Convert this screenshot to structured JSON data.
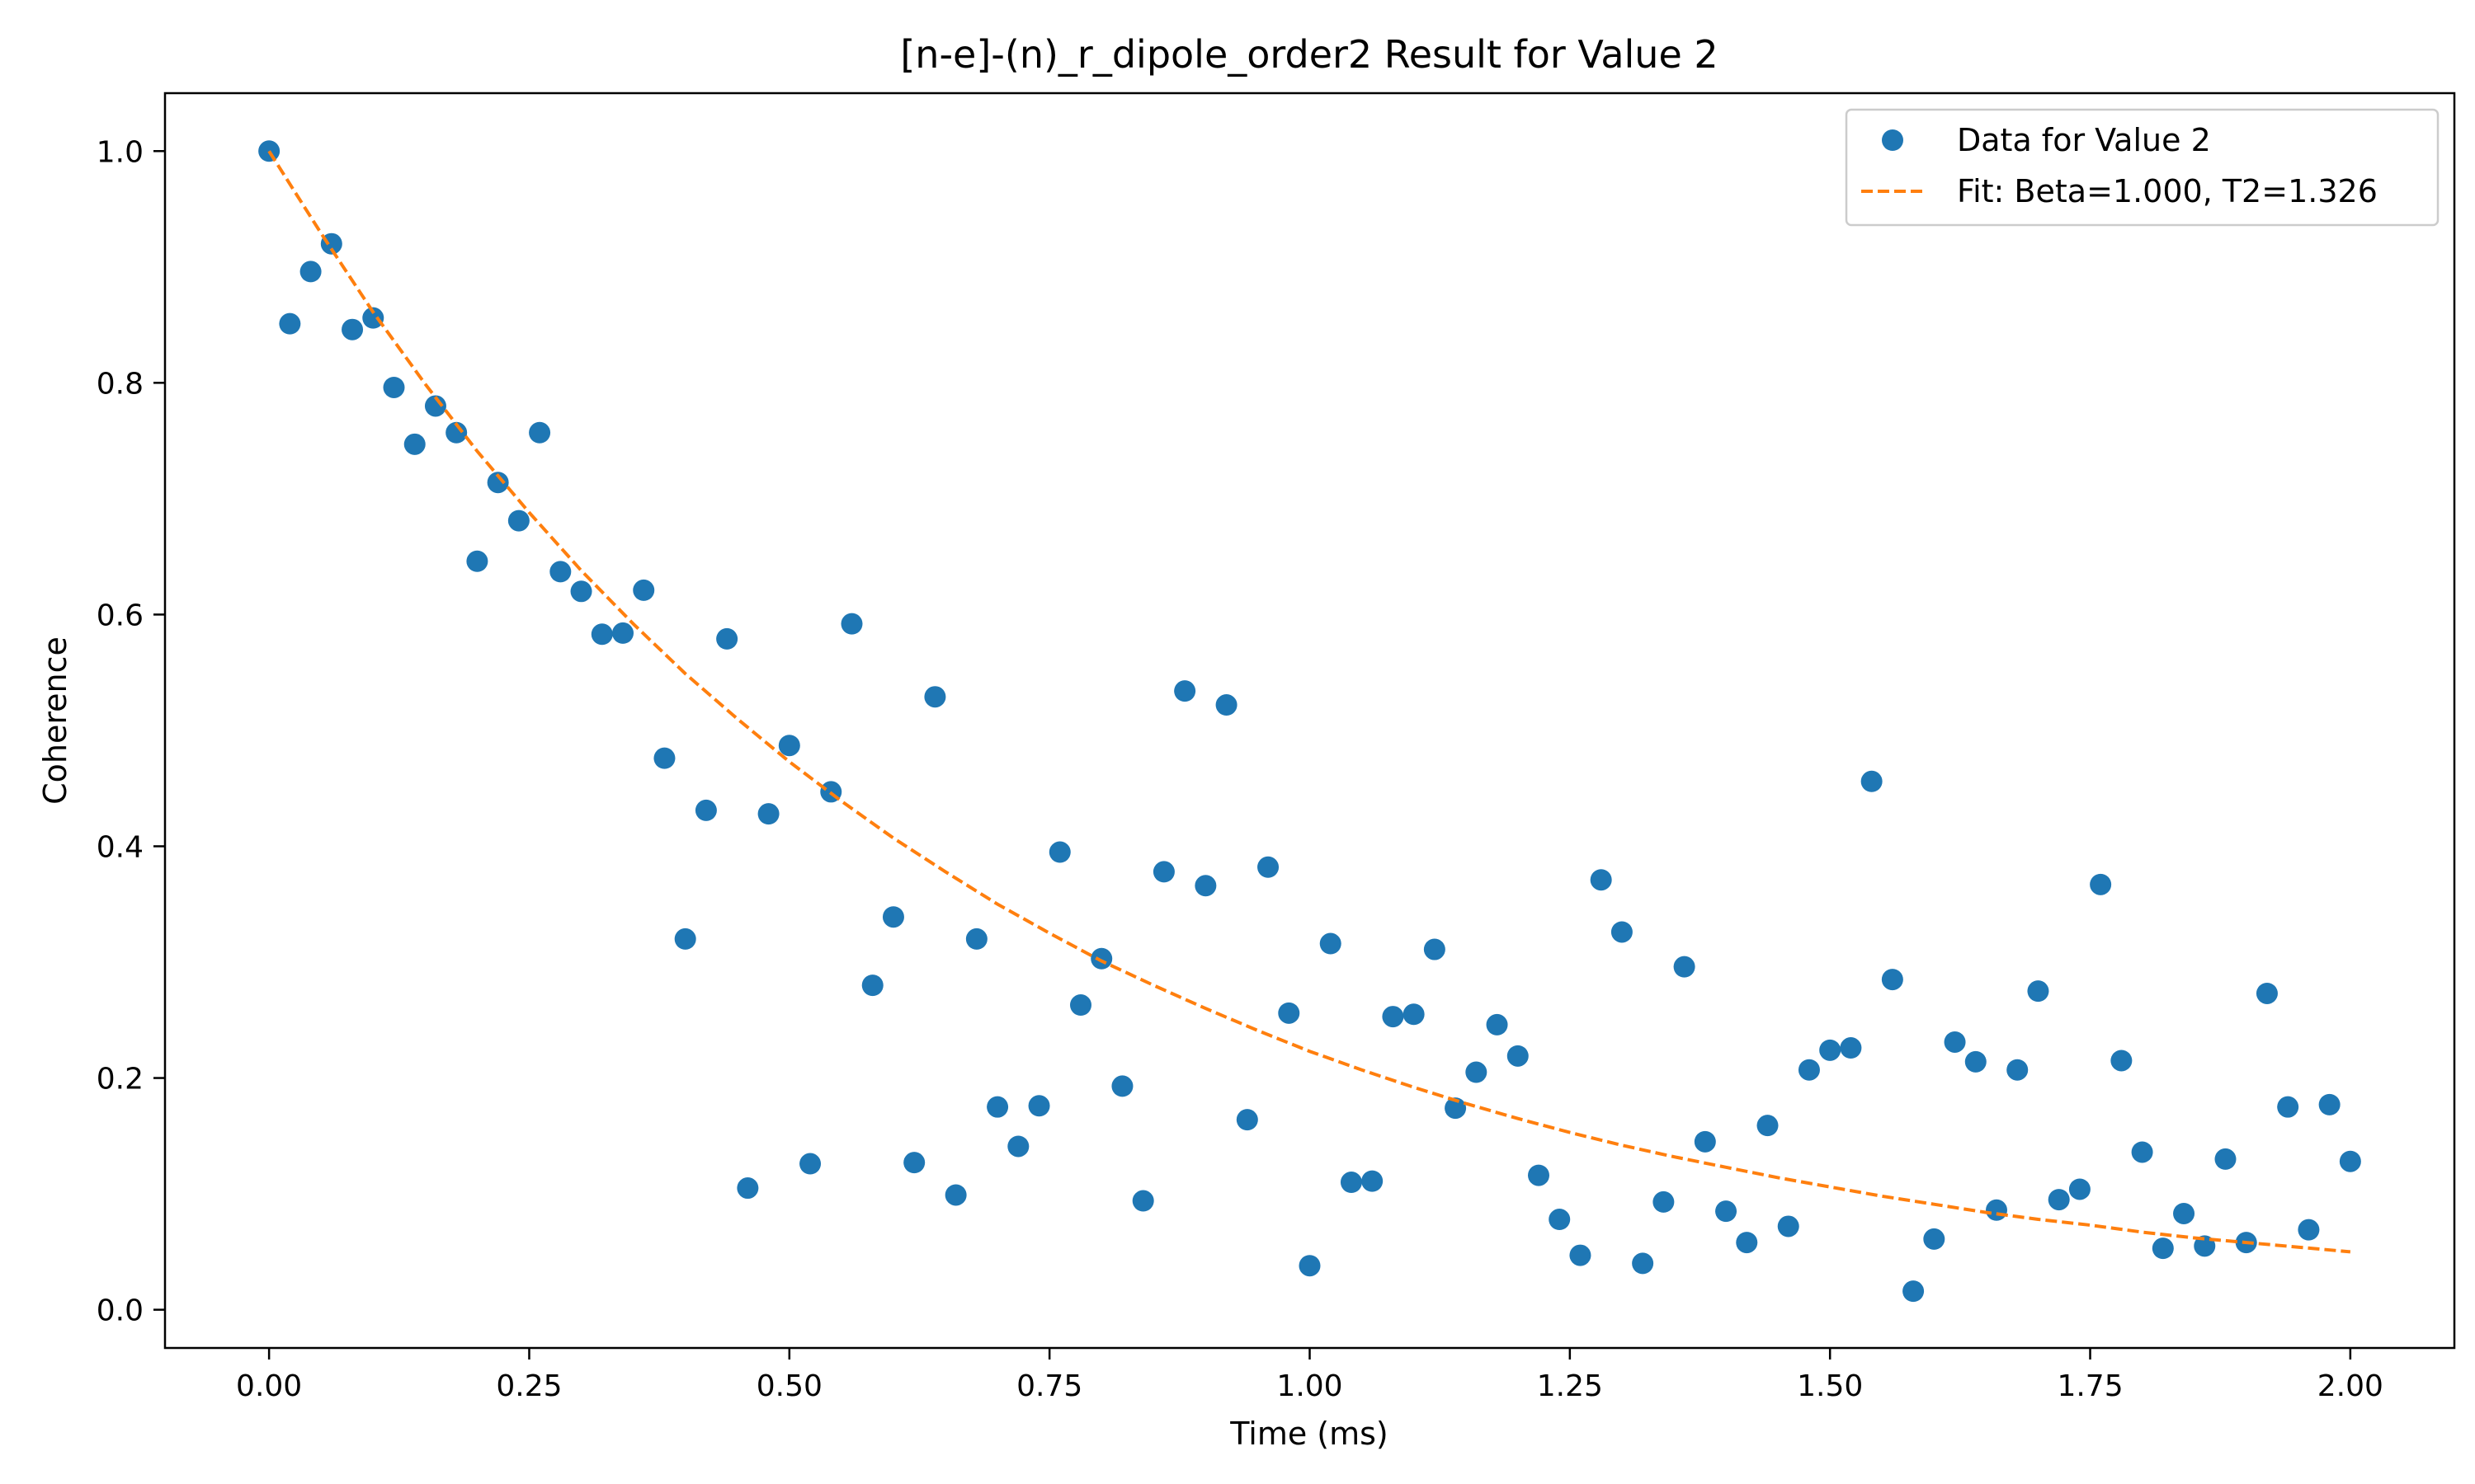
{
  "chart_data": {
    "type": "scatter",
    "title": "[n-e]-(n)_r_dipole_order2 Result for Value 2",
    "xlabel": "Time (ms)",
    "ylabel": "Coherence",
    "xlim": [
      -0.1,
      2.1
    ],
    "ylim": [
      -0.033,
      1.05
    ],
    "x_ticks": [
      0.0,
      0.25,
      0.5,
      0.75,
      1.0,
      1.25,
      1.5,
      1.75,
      2.0
    ],
    "x_tick_labels": [
      "0.00",
      "0.25",
      "0.50",
      "0.75",
      "1.00",
      "1.25",
      "1.50",
      "1.75",
      "2.00"
    ],
    "y_ticks": [
      0.0,
      0.2,
      0.4,
      0.6,
      0.8,
      1.0
    ],
    "y_tick_labels": [
      "0.0",
      "0.2",
      "0.4",
      "0.6",
      "0.8",
      "1.0"
    ],
    "grid": false,
    "legend_position": "top-right",
    "series": [
      {
        "name": "Data for Value 2",
        "kind": "scatter",
        "color": "#1f77b4",
        "x": [
          0.0,
          0.02,
          0.04,
          0.06,
          0.08,
          0.1,
          0.12,
          0.14,
          0.16,
          0.18,
          0.2,
          0.22,
          0.24,
          0.26,
          0.28,
          0.3,
          0.32,
          0.34,
          0.36,
          0.38,
          0.4,
          0.42,
          0.44,
          0.46,
          0.48,
          0.5,
          0.52,
          0.54,
          0.56,
          0.58,
          0.6,
          0.62,
          0.64,
          0.66,
          0.68,
          0.7,
          0.72,
          0.74,
          0.76,
          0.78,
          0.8,
          0.82,
          0.84,
          0.86,
          0.88,
          0.9,
          0.92,
          0.94,
          0.96,
          0.98,
          1.0,
          1.02,
          1.04,
          1.06,
          1.08,
          1.1,
          1.12,
          1.14,
          1.16,
          1.18,
          1.2,
          1.22,
          1.24,
          1.26,
          1.28,
          1.3,
          1.32,
          1.34,
          1.36,
          1.38,
          1.4,
          1.42,
          1.44,
          1.46,
          1.48,
          1.5,
          1.52,
          1.54,
          1.56,
          1.58,
          1.6,
          1.62,
          1.64,
          1.66,
          1.68,
          1.7,
          1.72,
          1.74,
          1.76,
          1.78,
          1.8,
          1.82,
          1.84,
          1.86,
          1.88,
          1.9,
          1.92,
          1.94,
          1.96,
          1.98,
          2.0
        ],
        "y": [
          1.0,
          0.851,
          0.896,
          0.92,
          0.846,
          0.856,
          0.796,
          0.747,
          0.78,
          0.757,
          0.646,
          0.714,
          0.681,
          0.757,
          0.637,
          0.62,
          0.583,
          0.584,
          0.621,
          0.476,
          0.32,
          0.431,
          0.579,
          0.105,
          0.428,
          0.487,
          0.126,
          0.447,
          0.592,
          0.28,
          0.339,
          0.127,
          0.529,
          0.099,
          0.32,
          0.175,
          0.141,
          0.176,
          0.395,
          0.263,
          0.303,
          0.193,
          0.094,
          0.378,
          0.534,
          0.366,
          0.522,
          0.164,
          0.382,
          0.256,
          0.038,
          0.316,
          0.11,
          0.111,
          0.253,
          0.255,
          0.311,
          0.174,
          0.205,
          0.246,
          0.219,
          0.116,
          0.078,
          0.047,
          0.371,
          0.326,
          0.04,
          0.093,
          0.296,
          0.145,
          0.085,
          0.058,
          0.159,
          0.072,
          0.207,
          0.224,
          0.226,
          0.456,
          0.285,
          0.016,
          0.061,
          0.231,
          0.214,
          0.086,
          0.207,
          0.275,
          0.095,
          0.104,
          0.367,
          0.215,
          0.136,
          0.053,
          0.083,
          0.055,
          0.13,
          0.058,
          0.273,
          0.175,
          0.069,
          0.177,
          0.128
        ]
      },
      {
        "name": "Fit: Beta=1.000, T2=1.326",
        "kind": "line",
        "style": "dashed",
        "color": "#ff7f0e",
        "x": [
          0.0,
          0.05,
          0.1,
          0.15,
          0.2,
          0.25,
          0.3,
          0.35,
          0.4,
          0.45,
          0.5,
          0.55,
          0.6,
          0.65,
          0.7,
          0.75,
          0.8,
          0.85,
          0.9,
          0.95,
          1.0,
          1.05,
          1.1,
          1.15,
          1.2,
          1.25,
          1.3,
          1.35,
          1.4,
          1.45,
          1.5,
          1.55,
          1.6,
          1.65,
          1.7,
          1.75,
          1.8,
          1.85,
          1.9,
          1.95,
          2.0
        ],
        "y": [
          1.0,
          0.929,
          0.861,
          0.799,
          0.741,
          0.688,
          0.638,
          0.592,
          0.549,
          0.51,
          0.473,
          0.439,
          0.407,
          0.378,
          0.35,
          0.325,
          0.301,
          0.28,
          0.26,
          0.241,
          0.223,
          0.207,
          0.192,
          0.178,
          0.165,
          0.153,
          0.142,
          0.132,
          0.123,
          0.114,
          0.106,
          0.098,
          0.091,
          0.084,
          0.078,
          0.073,
          0.067,
          0.062,
          0.058,
          0.054,
          0.05
        ]
      }
    ]
  }
}
